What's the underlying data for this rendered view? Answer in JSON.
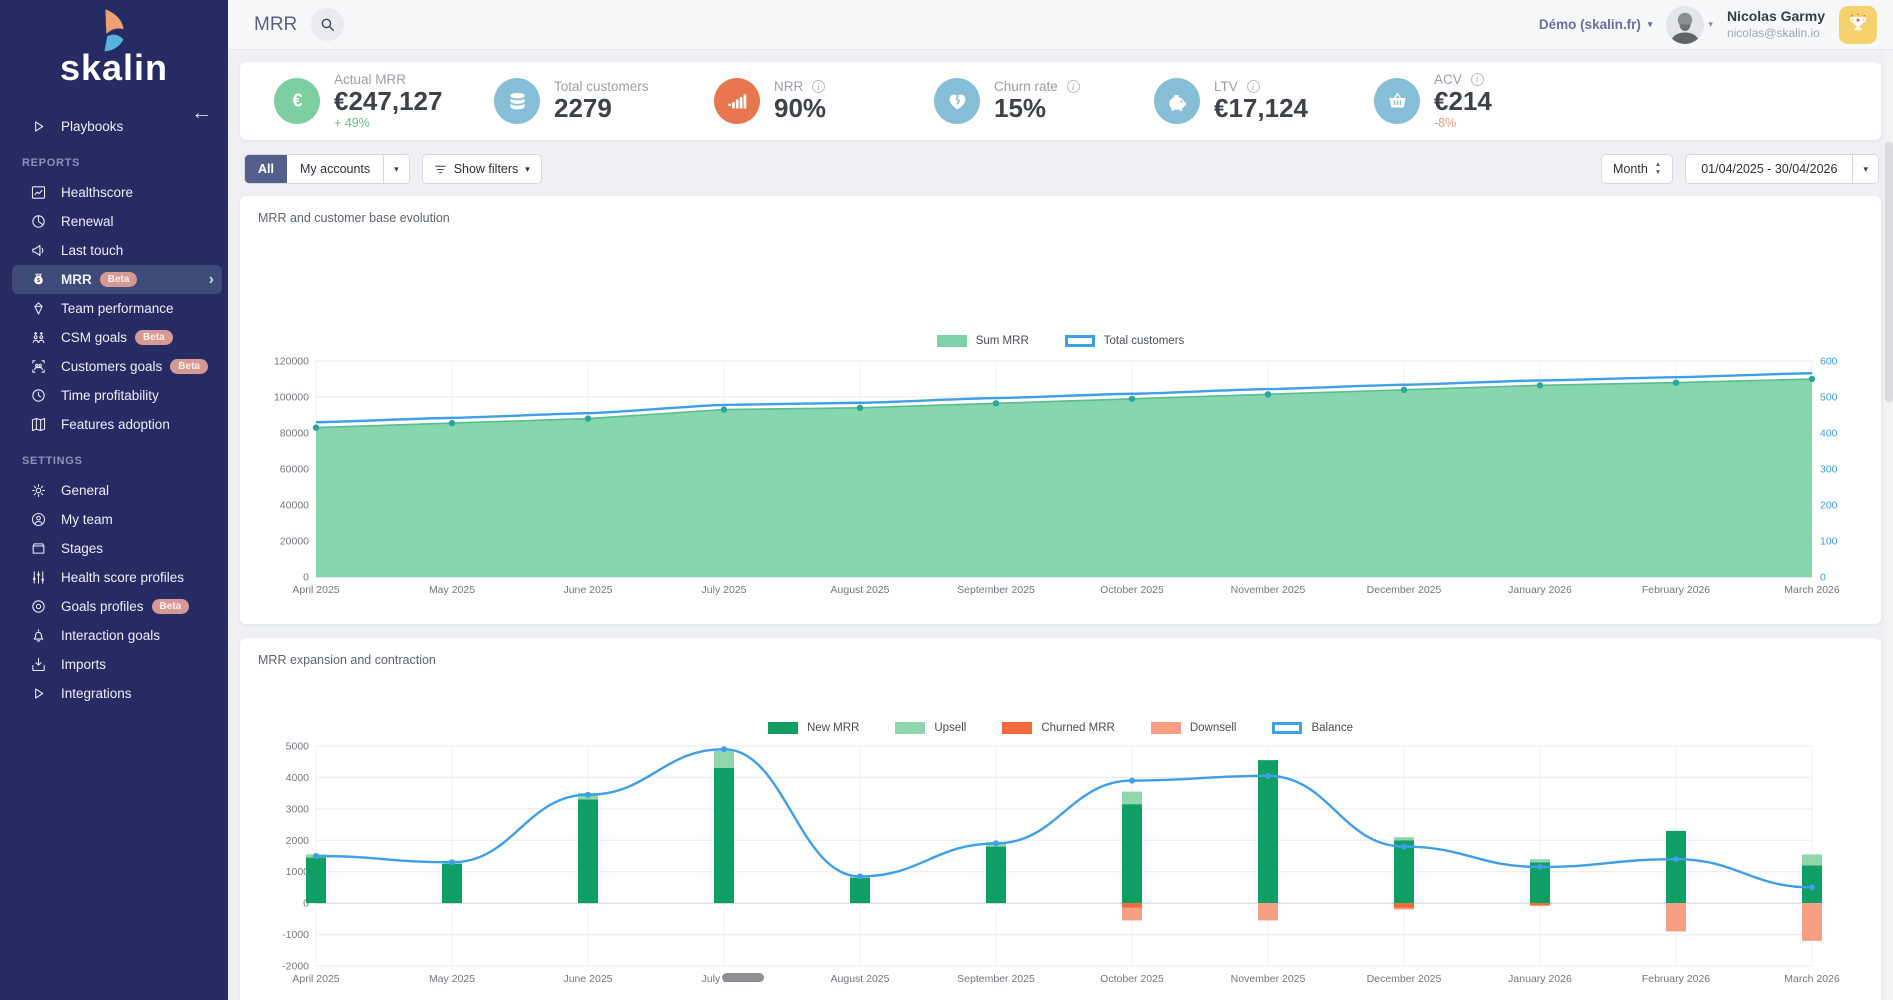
{
  "app": {
    "title": "MRR"
  },
  "topbar": {
    "org": "Démo (skalin.fr)",
    "user_name": "Nicolas Garmy",
    "user_email": "nicolas@skalin.io"
  },
  "sidebar": {
    "logo": "skalin",
    "beta_label": "Beta",
    "sections": [
      {
        "header": null,
        "items": [
          {
            "label": "Playbooks",
            "icon": "play"
          }
        ]
      },
      {
        "header": "REPORTS",
        "items": [
          {
            "label": "Healthscore",
            "icon": "chart"
          },
          {
            "label": "Renewal",
            "icon": "pie"
          },
          {
            "label": "Last touch",
            "icon": "megaphone"
          },
          {
            "label": "MRR",
            "icon": "moneybag",
            "beta": true,
            "active": true
          },
          {
            "label": "Team performance",
            "icon": "diamond"
          },
          {
            "label": "CSM goals",
            "icon": "people-up",
            "beta": true
          },
          {
            "label": "Customers goals",
            "icon": "people-frame",
            "beta": true
          },
          {
            "label": "Time profitability",
            "icon": "clock"
          },
          {
            "label": "Features adoption",
            "icon": "map"
          }
        ]
      },
      {
        "header": "SETTINGS",
        "items": [
          {
            "label": "General",
            "icon": "gear"
          },
          {
            "label": "My team",
            "icon": "user"
          },
          {
            "label": "Stages",
            "icon": "folder"
          },
          {
            "label": "Health score profiles",
            "icon": "sliders"
          },
          {
            "label": "Goals profiles",
            "icon": "target",
            "beta": true
          },
          {
            "label": "Interaction goals",
            "icon": "bell"
          },
          {
            "label": "Imports",
            "icon": "import"
          },
          {
            "label": "Integrations",
            "icon": "play"
          }
        ]
      }
    ]
  },
  "kpis": [
    {
      "label": "Actual MRR",
      "value": "€247,127",
      "delta": "+ 49%",
      "delta_dir": "up",
      "icon": "euro",
      "icon_bg": "#7ccfa0",
      "info": false
    },
    {
      "label": "Total customers",
      "value": "2279",
      "icon": "database",
      "icon_bg": "#85bed6",
      "info": false
    },
    {
      "label": "NRR",
      "value": "90%",
      "icon": "bars",
      "icon_bg": "#e8764e",
      "info": true
    },
    {
      "label": "Churn rate",
      "value": "15%",
      "icon": "broken-heart",
      "icon_bg": "#85bed6",
      "info": true
    },
    {
      "label": "LTV",
      "value": "€17,124",
      "icon": "piggy",
      "icon_bg": "#85bed6",
      "info": true
    },
    {
      "label": "ACV",
      "value": "€214",
      "delta": "-8%",
      "delta_dir": "down",
      "icon": "basket",
      "icon_bg": "#85bed6",
      "info": true
    }
  ],
  "filters": {
    "scope_all": "All",
    "scope_my": "My accounts",
    "show_filters": "Show filters",
    "granularity": "Month",
    "date_range": "01/04/2025 - 30/04/2026"
  },
  "chart_data": [
    {
      "type": "area",
      "title": "MRR and customer base evolution",
      "x": [
        "April 2025",
        "May 2025",
        "June 2025",
        "July 2025",
        "August 2025",
        "September 2025",
        "October 2025",
        "November 2025",
        "December 2025",
        "January 2026",
        "February 2026",
        "March 2026"
      ],
      "series": [
        {
          "name": "Sum MRR",
          "type": "area",
          "axis": "left",
          "color": "#7fd3a8",
          "values": [
            83000,
            85500,
            88000,
            93000,
            94000,
            96500,
            99000,
            101500,
            104000,
            106500,
            108000,
            110000
          ]
        },
        {
          "name": "Total customers",
          "type": "line",
          "axis": "right",
          "color": "#3f9fe8",
          "values": [
            430,
            442,
            455,
            478,
            484,
            497,
            509,
            522,
            534,
            546,
            555,
            566
          ]
        }
      ],
      "left_axis": {
        "min": 0,
        "max": 120000,
        "step": 20000
      },
      "right_axis": {
        "min": 0,
        "max": 600,
        "step": 100,
        "color": "#3f9fe8"
      },
      "legend_position": "top",
      "grid": true
    },
    {
      "type": "bar-line",
      "title": "MRR expansion and contraction",
      "x": [
        "April 2025",
        "May 2025",
        "June 2025",
        "July 2025",
        "August 2025",
        "September 2025",
        "October 2025",
        "November 2025",
        "December 2025",
        "January 2026",
        "February 2026",
        "March 2026"
      ],
      "series": [
        {
          "name": "New MRR",
          "type": "bar",
          "color": "#0f9f63",
          "values": [
            1450,
            1250,
            3300,
            4300,
            800,
            1800,
            3150,
            4550,
            2000,
            1300,
            2300,
            1200
          ]
        },
        {
          "name": "Upsell",
          "type": "bar",
          "color": "#90d7ac",
          "values": [
            100,
            100,
            200,
            550,
            60,
            150,
            400,
            0,
            100,
            100,
            0,
            350
          ]
        },
        {
          "name": "Churned MRR",
          "type": "bar",
          "color": "#f4683b",
          "values": [
            0,
            0,
            0,
            0,
            0,
            0,
            -150,
            0,
            -150,
            -80,
            0,
            0
          ]
        },
        {
          "name": "Downsell",
          "type": "bar",
          "color": "#f89e82",
          "values": [
            0,
            0,
            0,
            0,
            0,
            0,
            -400,
            -550,
            -50,
            0,
            -900,
            -1200
          ]
        },
        {
          "name": "Balance",
          "type": "line",
          "color": "#3f9fe8",
          "values": [
            1500,
            1300,
            3450,
            4900,
            850,
            1900,
            3900,
            4050,
            1800,
            1150,
            1400,
            500
          ]
        }
      ],
      "left_axis": {
        "min": -2000,
        "max": 5000,
        "step": 1000
      },
      "legend_position": "top",
      "grid": true
    }
  ]
}
